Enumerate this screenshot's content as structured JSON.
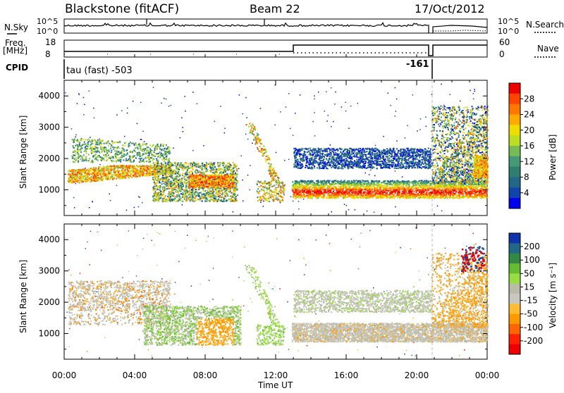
{
  "header": {
    "station": "Blackstone (fitACF)",
    "beam": "Beam 22",
    "date": "17/Oct/2012"
  },
  "strip": {
    "nsky_label": "N.Sky",
    "nsky_ticks": [
      "10^5",
      "10^0"
    ],
    "nsearch_label": "N.Search",
    "nsearch_ticks": [
      "10^5",
      "10^0"
    ],
    "freq_label_1": "Freq.",
    "freq_label_2": "[MHz]",
    "freq_ticks": [
      "18",
      "8"
    ],
    "nave_label": "Nave",
    "nave_ticks": [
      "60",
      "0"
    ],
    "cpid_label": "CPID",
    "cpid_text": "tau (fast) -503",
    "cpid_text2": "-161"
  },
  "axes": {
    "xlabel": "Time UT",
    "xticks": [
      "00:00",
      "04:00",
      "08:00",
      "12:00",
      "16:00",
      "20:00",
      "00:00"
    ],
    "ylabel": "Slant Range [km]",
    "yticks": [
      "1000",
      "2000",
      "3000",
      "4000"
    ]
  },
  "colorbars": {
    "power": {
      "label": "Power [dB]",
      "ticks": [
        "28",
        "24",
        "20",
        "16",
        "12",
        "8",
        "4"
      ],
      "colors": [
        "#ee0000",
        "#ff4400",
        "#ff7700",
        "#ffaa00",
        "#eedd00",
        "#bbdd22",
        "#77bb55",
        "#449977",
        "#2f7f6f",
        "#226688",
        "#1144aa",
        "#0000ee"
      ]
    },
    "velocity": {
      "label": "Velocity [m s⁻¹]",
      "ticks": [
        "200",
        "100",
        "50",
        "15",
        "-15",
        "-50",
        "-100",
        "-200"
      ],
      "colors": [
        "#1133aa",
        "#226688",
        "#338844",
        "#66bb33",
        "#99dd44",
        "#bbbbaa",
        "#c8c8c0",
        "#ffbb33",
        "#ff9900",
        "#ff6600",
        "#ff2200",
        "#ee0000"
      ]
    }
  },
  "chart_data": [
    {
      "type": "heatmap",
      "title": "Power",
      "x_range_hours": [
        0,
        24
      ],
      "y_range_km": [
        180,
        4500
      ],
      "features": [
        {
          "x_hours": [
            0.2,
            6.0
          ],
          "y_km": [
            1400,
            1800
          ],
          "value_db": "10-28",
          "description_hidden": true
        },
        {
          "x_hours": [
            13.0,
            24.0
          ],
          "y_km": [
            900,
            1300
          ],
          "value_db": "16-28"
        },
        {
          "x_hours": [
            9.5,
            12.5
          ],
          "y_km": [
            900,
            3000
          ],
          "value_db": "8-20"
        }
      ],
      "ylim": [
        180,
        4500
      ]
    },
    {
      "type": "heatmap",
      "title": "Velocity",
      "x_range_hours": [
        0,
        24
      ],
      "y_range_km": [
        180,
        4500
      ],
      "ylim": [
        180,
        4500
      ]
    }
  ]
}
